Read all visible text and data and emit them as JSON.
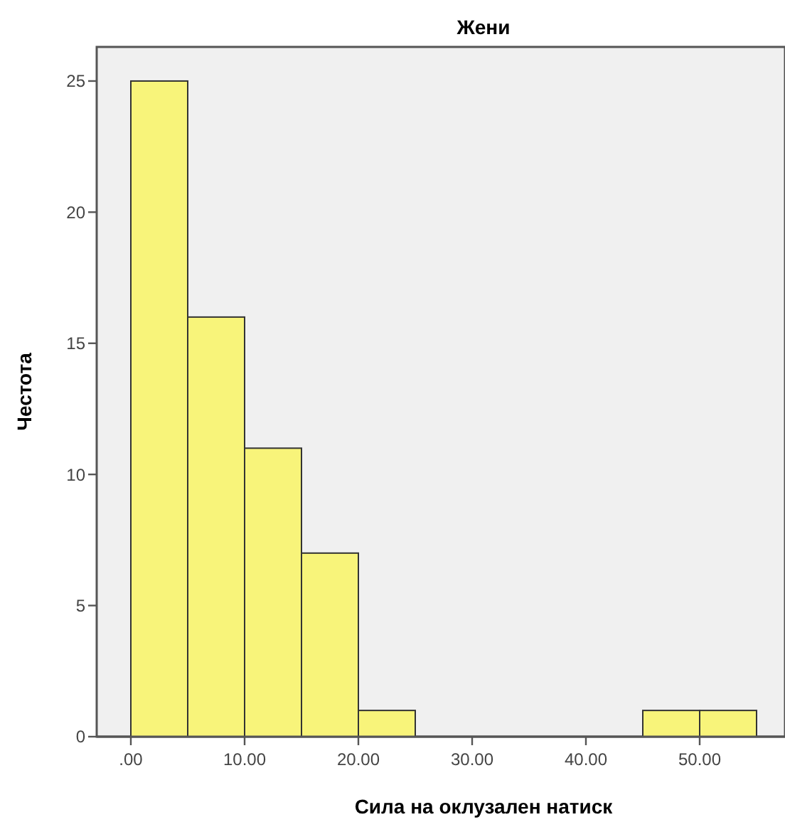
{
  "chart_data": {
    "type": "histogram",
    "title": "Жени",
    "xlabel": "Сила на оклузален натиск",
    "ylabel": "Честота",
    "bins": [
      0,
      5,
      10,
      15,
      20,
      25,
      30,
      35,
      40,
      45,
      50,
      55
    ],
    "values": [
      25,
      16,
      11,
      7,
      1,
      0,
      0,
      0,
      0,
      1,
      1
    ],
    "color": "#f8f47a",
    "xlim": [
      -3,
      57.5
    ],
    "ylim": [
      0,
      26.3
    ],
    "xticks": [
      {
        "value": 0,
        "label": ".00"
      },
      {
        "value": 10,
        "label": "10.00"
      },
      {
        "value": 20,
        "label": "20.00"
      },
      {
        "value": 30,
        "label": "30.00"
      },
      {
        "value": 40,
        "label": "40.00"
      },
      {
        "value": 50,
        "label": "50.00"
      }
    ],
    "yticks": [
      0,
      5,
      10,
      15,
      20,
      25
    ]
  }
}
